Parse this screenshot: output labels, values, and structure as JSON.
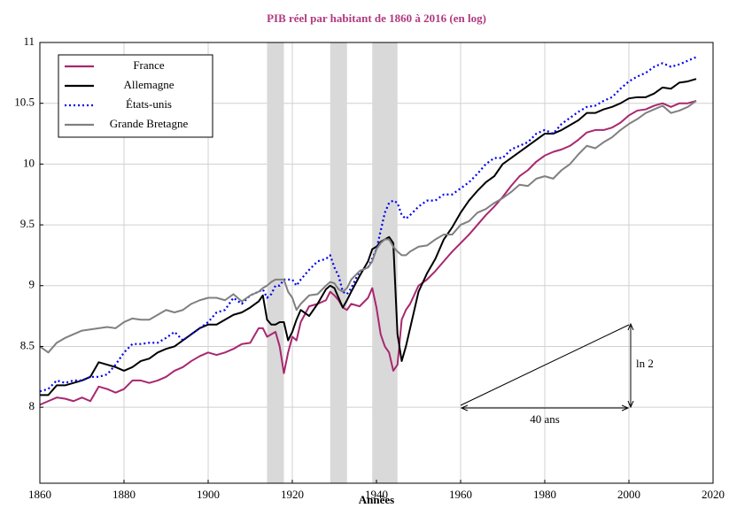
{
  "chart_data": {
    "type": "line",
    "title": "PIB réel par habitant de 1860 à 2016 (en log)",
    "xlabel": "Années",
    "x": [
      1860,
      1862,
      1864,
      1866,
      1868,
      1870,
      1872,
      1874,
      1876,
      1878,
      1880,
      1882,
      1884,
      1886,
      1888,
      1890,
      1892,
      1894,
      1896,
      1898,
      1900,
      1902,
      1904,
      1906,
      1908,
      1910,
      1912,
      1913,
      1914,
      1915,
      1916,
      1917,
      1918,
      1919,
      1920,
      1921,
      1922,
      1924,
      1926,
      1928,
      1929,
      1930,
      1931,
      1932,
      1933,
      1934,
      1936,
      1938,
      1939,
      1940,
      1941,
      1942,
      1943,
      1944,
      1945,
      1946,
      1947,
      1948,
      1950,
      1952,
      1954,
      1956,
      1958,
      1960,
      1962,
      1964,
      1966,
      1968,
      1970,
      1972,
      1974,
      1976,
      1978,
      1980,
      1982,
      1984,
      1986,
      1988,
      1990,
      1992,
      1994,
      1996,
      1998,
      2000,
      2002,
      2004,
      2006,
      2008,
      2010,
      2012,
      2014,
      2016
    ],
    "series": [
      {
        "name": "France",
        "color": "#a8276f",
        "dash": "solid",
        "values": [
          8.02,
          8.05,
          8.08,
          8.07,
          8.05,
          8.08,
          8.05,
          8.17,
          8.15,
          8.12,
          8.15,
          8.22,
          8.22,
          8.2,
          8.22,
          8.25,
          8.3,
          8.33,
          8.38,
          8.42,
          8.45,
          8.43,
          8.45,
          8.48,
          8.52,
          8.53,
          8.65,
          8.65,
          8.58,
          8.6,
          8.62,
          8.5,
          8.28,
          8.45,
          8.58,
          8.55,
          8.7,
          8.83,
          8.85,
          8.88,
          8.95,
          8.92,
          8.88,
          8.82,
          8.8,
          8.85,
          8.83,
          8.9,
          8.98,
          8.82,
          8.6,
          8.5,
          8.45,
          8.3,
          8.35,
          8.72,
          8.8,
          8.85,
          9.0,
          9.05,
          9.12,
          9.2,
          9.28,
          9.35,
          9.42,
          9.5,
          9.58,
          9.65,
          9.73,
          9.82,
          9.9,
          9.95,
          10.02,
          10.07,
          10.1,
          10.12,
          10.15,
          10.2,
          10.26,
          10.28,
          10.28,
          10.3,
          10.34,
          10.4,
          10.44,
          10.45,
          10.48,
          10.5,
          10.47,
          10.5,
          10.5,
          10.52
        ]
      },
      {
        "name": "Allemagne",
        "color": "#000000",
        "dash": "solid",
        "values": [
          8.1,
          8.1,
          8.18,
          8.18,
          8.2,
          8.22,
          8.25,
          8.37,
          8.35,
          8.33,
          8.3,
          8.33,
          8.38,
          8.4,
          8.45,
          8.48,
          8.5,
          8.55,
          8.6,
          8.65,
          8.68,
          8.68,
          8.72,
          8.76,
          8.78,
          8.82,
          8.87,
          8.92,
          8.72,
          8.68,
          8.68,
          8.7,
          8.7,
          8.55,
          8.62,
          8.72,
          8.8,
          8.75,
          8.85,
          8.97,
          9.0,
          8.98,
          8.9,
          8.82,
          8.88,
          8.95,
          9.08,
          9.2,
          9.3,
          9.32,
          9.36,
          9.38,
          9.4,
          9.35,
          8.6,
          8.38,
          8.5,
          8.65,
          8.95,
          9.1,
          9.22,
          9.38,
          9.48,
          9.6,
          9.7,
          9.78,
          9.85,
          9.9,
          10.0,
          10.05,
          10.1,
          10.15,
          10.2,
          10.25,
          10.25,
          10.28,
          10.32,
          10.36,
          10.42,
          10.42,
          10.45,
          10.47,
          10.5,
          10.54,
          10.55,
          10.55,
          10.58,
          10.63,
          10.62,
          10.67,
          10.68,
          10.7
        ]
      },
      {
        "name": "États-unis",
        "color": "#0000ee",
        "dash": "dotted",
        "values": [
          8.13,
          8.15,
          8.22,
          8.2,
          8.22,
          8.22,
          8.25,
          8.25,
          8.27,
          8.35,
          8.45,
          8.52,
          8.52,
          8.53,
          8.53,
          8.57,
          8.62,
          8.55,
          8.6,
          8.65,
          8.7,
          8.78,
          8.8,
          8.9,
          8.85,
          8.92,
          8.95,
          8.97,
          8.9,
          8.93,
          9.0,
          9.0,
          9.05,
          9.05,
          9.05,
          9.0,
          9.05,
          9.13,
          9.2,
          9.22,
          9.25,
          9.15,
          9.08,
          8.95,
          8.93,
          8.98,
          9.12,
          9.15,
          9.22,
          9.3,
          9.45,
          9.6,
          9.68,
          9.7,
          9.68,
          9.58,
          9.55,
          9.58,
          9.65,
          9.7,
          9.7,
          9.75,
          9.75,
          9.8,
          9.85,
          9.92,
          10.0,
          10.05,
          10.05,
          10.12,
          10.15,
          10.18,
          10.25,
          10.28,
          10.25,
          10.33,
          10.38,
          10.43,
          10.47,
          10.48,
          10.52,
          10.55,
          10.62,
          10.68,
          10.72,
          10.75,
          10.8,
          10.83,
          10.8,
          10.82,
          10.85,
          10.88
        ]
      },
      {
        "name": "Grande Bretagne",
        "color": "#808080",
        "dash": "solid",
        "values": [
          8.5,
          8.45,
          8.53,
          8.57,
          8.6,
          8.63,
          8.64,
          8.65,
          8.66,
          8.65,
          8.7,
          8.73,
          8.72,
          8.72,
          8.76,
          8.8,
          8.78,
          8.8,
          8.85,
          8.88,
          8.9,
          8.9,
          8.88,
          8.93,
          8.87,
          8.92,
          8.95,
          8.98,
          9.0,
          9.03,
          9.05,
          9.05,
          9.05,
          8.95,
          8.9,
          8.8,
          8.85,
          8.92,
          8.93,
          9.0,
          9.03,
          9.02,
          8.97,
          8.95,
          8.98,
          9.05,
          9.12,
          9.15,
          9.2,
          9.3,
          9.35,
          9.38,
          9.38,
          9.32,
          9.28,
          9.25,
          9.25,
          9.28,
          9.32,
          9.33,
          9.38,
          9.42,
          9.42,
          9.5,
          9.53,
          9.6,
          9.63,
          9.68,
          9.72,
          9.77,
          9.83,
          9.82,
          9.88,
          9.9,
          9.88,
          9.95,
          10.0,
          10.08,
          10.15,
          10.13,
          10.18,
          10.22,
          10.28,
          10.33,
          10.37,
          10.42,
          10.45,
          10.48,
          10.42,
          10.44,
          10.47,
          10.52
        ]
      }
    ],
    "shaded_periods": [
      [
        1914,
        1918
      ],
      [
        1929,
        1933
      ],
      [
        1939,
        1945
      ]
    ],
    "shade_color": "#d9d9d9",
    "annotations": [
      "40 ans",
      "ln 2"
    ],
    "xlim": [
      1860,
      2020
    ],
    "xticks": [
      1860,
      1880,
      1900,
      1920,
      1940,
      1960,
      1980,
      2000,
      2020
    ],
    "ylim": [
      7.375,
      11
    ],
    "yticks": [
      8,
      8.5,
      9,
      9.5,
      10,
      10.5,
      11
    ],
    "grid": true,
    "legend": "upper left"
  }
}
